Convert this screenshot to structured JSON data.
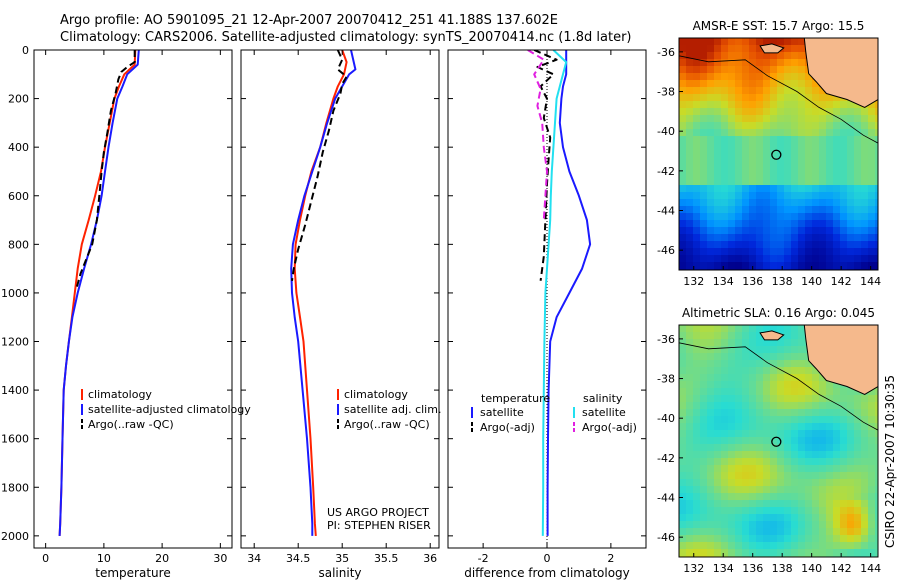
{
  "header": {
    "line1": "Argo profile: AO 5901095_21 12-Apr-2007 20070412_251 41.188S 137.602E",
    "line2": "Climatology: CARS2006. Satellite-adjusted climatology: synTS_20070414.nc (1.8d later)"
  },
  "timestamp": "CSIRO 22-Apr-2007 10:30:35",
  "colors": {
    "climatology": "#ff2200",
    "satellite": "#1a1aff",
    "argo": "#000000",
    "satellite_salinity": "#22e0f0",
    "argo_salinity_adj": "#e020e0",
    "land": "#f5b98c"
  },
  "chart_data": [
    {
      "type": "line",
      "panel": "temperature",
      "xlabel": "temperature",
      "ylabel": "",
      "xlim": [
        -2,
        32
      ],
      "ylim": [
        2050,
        0
      ],
      "xticks": [
        0,
        10,
        20,
        30
      ],
      "yticks": [
        0,
        200,
        400,
        600,
        800,
        1000,
        1200,
        1400,
        1600,
        1800,
        2000
      ],
      "legend_position": "lower-right",
      "series": [
        {
          "name": "climatology",
          "color": "#ff2200",
          "dash": "solid",
          "x": [
            15.4,
            15.3,
            13.5,
            12.6,
            11.8,
            11.0,
            10.2,
            9.5,
            8.5,
            7.4,
            6.2,
            5.5,
            5.0,
            4.5,
            4.0,
            3.5,
            3.1,
            2.9,
            2.7,
            2.5,
            2.4
          ],
          "y": [
            0,
            60,
            100,
            150,
            200,
            300,
            400,
            500,
            600,
            700,
            800,
            900,
            1000,
            1100,
            1200,
            1300,
            1400,
            1600,
            1800,
            1950,
            2000
          ]
        },
        {
          "name": "satellite-adjusted climatology",
          "color": "#1a1aff",
          "dash": "solid",
          "x": [
            16.0,
            15.8,
            14.0,
            13.2,
            12.3,
            11.5,
            10.8,
            10.2,
            9.6,
            8.8,
            7.8,
            6.6,
            5.5,
            4.6,
            4.0,
            3.5,
            3.1,
            2.9,
            2.7,
            2.5,
            2.4
          ],
          "y": [
            0,
            60,
            100,
            150,
            200,
            300,
            400,
            500,
            600,
            700,
            800,
            900,
            1000,
            1100,
            1200,
            1300,
            1400,
            1600,
            1800,
            1950,
            2000
          ]
        },
        {
          "name": "Argo(..raw -QC)",
          "color": "#000000",
          "dash": "dashed",
          "x": [
            15.3,
            15.3,
            14.0,
            13.0,
            12.5,
            12.0,
            11.2,
            10.6,
            10.0,
            9.6,
            9.3,
            8.8,
            8.0,
            7.0,
            6.0,
            5.2
          ],
          "y": [
            0,
            50,
            70,
            90,
            120,
            180,
            250,
            340,
            420,
            500,
            580,
            700,
            800,
            860,
            920,
            990
          ]
        }
      ]
    },
    {
      "type": "line",
      "panel": "salinity",
      "xlabel": "salinity",
      "ylabel": "",
      "xlim": [
        33.85,
        36.1
      ],
      "ylim": [
        2050,
        0
      ],
      "xticks": [
        34,
        34.5,
        35,
        35.5,
        36
      ],
      "footer": [
        "US ARGO PROJECT",
        "PI: STEPHEN RISER"
      ],
      "legend_position": "lower-right",
      "series": [
        {
          "name": "climatology",
          "color": "#ff2200",
          "dash": "solid",
          "x": [
            35.0,
            35.05,
            35.02,
            34.95,
            34.9,
            34.82,
            34.75,
            34.65,
            34.58,
            34.52,
            34.47,
            34.46,
            34.48,
            34.52,
            34.56,
            34.6,
            34.64,
            34.67,
            34.69,
            34.7
          ],
          "y": [
            0,
            50,
            100,
            150,
            200,
            300,
            400,
            500,
            600,
            700,
            800,
            900,
            1000,
            1100,
            1200,
            1400,
            1600,
            1800,
            1950,
            2000
          ]
        },
        {
          "name": "satellite adj. clim.",
          "color": "#1a1aff",
          "dash": "solid",
          "x": [
            35.1,
            35.15,
            35.08,
            35.0,
            34.92,
            34.83,
            34.75,
            34.66,
            34.57,
            34.5,
            34.44,
            34.42,
            34.43,
            34.46,
            34.5,
            34.55,
            34.6,
            34.64,
            34.66,
            34.66
          ],
          "y": [
            0,
            80,
            100,
            150,
            200,
            300,
            400,
            500,
            600,
            700,
            800,
            900,
            1000,
            1100,
            1200,
            1400,
            1600,
            1800,
            1950,
            2000
          ]
        },
        {
          "name": "Argo(..raw -QC)",
          "color": "#000000",
          "dash": "dashed",
          "x": [
            34.95,
            35.0,
            34.95,
            35.05,
            35.0,
            34.98,
            34.9,
            34.85,
            34.78,
            34.72,
            34.65,
            34.58,
            34.5,
            34.45,
            34.43
          ],
          "y": [
            0,
            40,
            80,
            110,
            140,
            180,
            250,
            330,
            420,
            520,
            620,
            720,
            820,
            900,
            950
          ]
        }
      ]
    },
    {
      "type": "line",
      "panel": "difference",
      "xlabel": "difference from climatology",
      "ylabel": "",
      "xlim": [
        -3.1,
        3.1
      ],
      "ylim": [
        2050,
        0
      ],
      "xticks": [
        -2,
        0,
        2
      ],
      "legend_titles": [
        "temperature",
        "salinity"
      ],
      "legend_position": "lower-right",
      "series": [
        {
          "name": "satellite",
          "group": "temperature",
          "color": "#1a1aff",
          "dash": "solid",
          "x": [
            0.6,
            0.6,
            0.6,
            0.5,
            0.45,
            0.4,
            0.5,
            0.7,
            1.0,
            1.25,
            1.35,
            1.1,
            0.7,
            0.3,
            0.1,
            0.05,
            0.03,
            0.02,
            0.02
          ],
          "y": [
            0,
            50,
            100,
            150,
            200,
            300,
            400,
            500,
            600,
            700,
            800,
            900,
            1000,
            1100,
            1200,
            1400,
            1600,
            1800,
            2000
          ]
        },
        {
          "name": "Argo(-adj)",
          "group": "temperature",
          "color": "#000000",
          "dash": "dashed",
          "x": [
            -0.4,
            0.3,
            -0.3,
            0.2,
            -0.2,
            0.0,
            -0.1,
            0.1,
            0.05,
            0.0,
            -0.05,
            -0.1,
            -0.2
          ],
          "y": [
            0,
            40,
            70,
            100,
            150,
            200,
            280,
            360,
            450,
            550,
            700,
            850,
            950
          ]
        },
        {
          "name": "satellite",
          "group": "salinity",
          "color": "#22e0f0",
          "dash": "solid",
          "x": [
            0.2,
            0.6,
            0.5,
            0.4,
            0.3,
            0.25,
            0.2,
            0.15,
            0.12,
            0.1,
            0.05,
            0.0,
            -0.05,
            -0.08,
            -0.1,
            -0.12,
            -0.12,
            -0.13
          ],
          "y": [
            0,
            50,
            100,
            150,
            200,
            300,
            400,
            500,
            600,
            700,
            800,
            900,
            1000,
            1200,
            1400,
            1600,
            1800,
            2000
          ]
        },
        {
          "name": "Argo(-adj)",
          "group": "salinity",
          "color": "#e020e0",
          "dash": "dashed",
          "x": [
            -0.6,
            -0.1,
            -0.4,
            -0.2,
            -0.3,
            -0.15,
            -0.1,
            0.0,
            -0.05,
            -0.1
          ],
          "y": [
            0,
            40,
            100,
            160,
            230,
            300,
            400,
            500,
            600,
            700
          ]
        }
      ]
    },
    {
      "type": "heatmap",
      "panel": "map-sst",
      "title": "AMSR-E SST: 15.7 Argo: 15.5",
      "xlim": [
        131,
        144.5
      ],
      "ylim": [
        -47,
        -35.3
      ],
      "xticks": [
        132,
        134,
        136,
        138,
        140,
        142,
        144
      ],
      "yticks": [
        -36,
        -38,
        -40,
        -42,
        -44,
        -46
      ],
      "marker": {
        "lon": 137.602,
        "lat": -41.188
      }
    },
    {
      "type": "heatmap",
      "panel": "map-sla",
      "title": "Altimetric SLA: 0.16 Argo: 0.045",
      "xlim": [
        131,
        144.5
      ],
      "ylim": [
        -47,
        -35.3
      ],
      "xticks": [
        132,
        134,
        136,
        138,
        140,
        142,
        144
      ],
      "yticks": [
        -36,
        -38,
        -40,
        -42,
        -44,
        -46
      ],
      "marker": {
        "lon": 137.602,
        "lat": -41.188
      }
    }
  ]
}
